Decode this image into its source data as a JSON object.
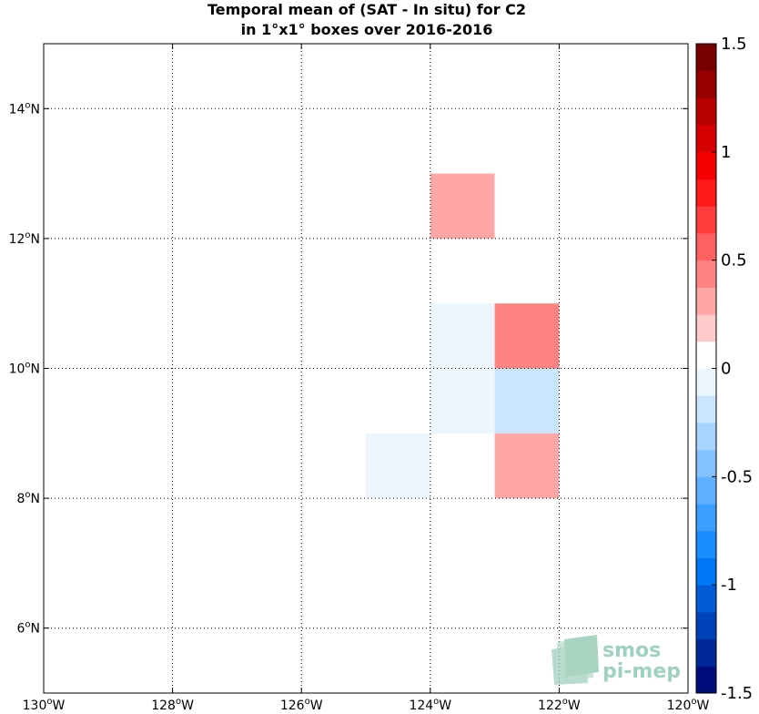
{
  "chart_data": {
    "type": "heatmap",
    "title_lines": [
      "Temporal mean of (SAT - In situ) for C2",
      "in 1°x1° boxes over 2016-2016"
    ],
    "x_ticks": [
      {
        "value": -130,
        "label": "130°W"
      },
      {
        "value": -128,
        "label": "128°W"
      },
      {
        "value": -126,
        "label": "126°W"
      },
      {
        "value": -124,
        "label": "124°W"
      },
      {
        "value": -122,
        "label": "122°W"
      },
      {
        "value": -120,
        "label": "120°W"
      }
    ],
    "y_ticks": [
      {
        "value": 6,
        "label": "6°N"
      },
      {
        "value": 8,
        "label": "8°N"
      },
      {
        "value": 10,
        "label": "10°N"
      },
      {
        "value": 12,
        "label": "12°N"
      },
      {
        "value": 14,
        "label": "14°N"
      }
    ],
    "xlim": [
      -130,
      -120
    ],
    "ylim": [
      5,
      15
    ],
    "grid": "dotted",
    "cells": [
      {
        "lon": -124,
        "lat": 12,
        "value": 0.35
      },
      {
        "lon": -124,
        "lat": 11,
        "value": 0.1
      },
      {
        "lon": -124,
        "lat": 10,
        "value": -0.1
      },
      {
        "lon": -124,
        "lat": 9,
        "value": -0.1
      },
      {
        "lon": -124,
        "lat": 8,
        "value": 0.0
      },
      {
        "lon": -123,
        "lat": 10,
        "value": 0.45
      },
      {
        "lon": -123,
        "lat": 9,
        "value": -0.25
      },
      {
        "lon": -123,
        "lat": 8,
        "value": 0.25
      },
      {
        "lon": -125,
        "lat": 8,
        "value": -0.1
      }
    ],
    "colorbar": {
      "min": -1.5,
      "max": 1.5,
      "ticks": [
        {
          "value": 1.5,
          "label": "1.5"
        },
        {
          "value": 1,
          "label": "1"
        },
        {
          "value": 0.5,
          "label": "0.5"
        },
        {
          "value": 0,
          "label": "0"
        },
        {
          "value": -0.5,
          "label": "-0.5"
        },
        {
          "value": -1,
          "label": "-1"
        },
        {
          "value": -1.5,
          "label": "-1.5"
        }
      ],
      "levels": 24,
      "colormap": "blue-white-red",
      "neg_end": "#00006a",
      "neg_mid": "#0080ff",
      "pos_mid": "#ff0000",
      "pos_end": "#6a0000"
    }
  },
  "watermark": {
    "line1": "smos",
    "line2": "pi-mep"
  }
}
